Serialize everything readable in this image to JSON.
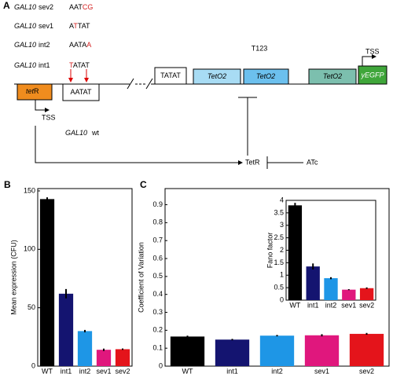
{
  "diagram": {
    "label": "A",
    "variants": [
      {
        "gene": "GAL10",
        "name": "sev2",
        "sequence": "AATCG",
        "mutated": [
          3,
          4
        ]
      },
      {
        "gene": "GAL10",
        "name": "sev1",
        "sequence": "ATTAT",
        "mutated": [
          1
        ]
      },
      {
        "gene": "GAL10",
        "name": "int2",
        "sequence": "AATAA",
        "mutated": [
          4
        ]
      },
      {
        "gene": "GAL10",
        "name": "int1",
        "sequence": "TATAT",
        "mutated": [
          0
        ]
      }
    ],
    "construct": "T123",
    "tatat_box": "TATAT",
    "teto": [
      "TetO2",
      "TetO2",
      "TetO2"
    ],
    "reporter": "yEGFP",
    "tss_reporter": "TSS",
    "repressor_gene": {
      "italic": "tet",
      "plain": "R"
    },
    "tss_repressor": "TSS",
    "aatat_box": "AATAT",
    "wt_label": {
      "gene": "GAL10",
      "name": "wt"
    },
    "protein": "TetR",
    "inducer": "ATc"
  },
  "chart_data": [
    {
      "type": "bar",
      "label": "B",
      "ylabel": "Mean expression (CFU)",
      "categories": [
        "WT",
        "int1",
        "int2",
        "sev1",
        "sev2"
      ],
      "values": [
        143,
        62,
        30,
        14,
        14.5
      ],
      "errors": [
        1.5,
        4,
        1,
        1,
        0.6
      ],
      "colors": [
        "#000000",
        "#141470",
        "#1e96e6",
        "#e0177d",
        "#e4141b"
      ],
      "ylim": [
        0,
        152
      ],
      "yticks": [
        0,
        50,
        100,
        150
      ]
    },
    {
      "type": "bar",
      "label": "C",
      "ylabel": "Coefficient of Variation",
      "categories": [
        "WT",
        "int1",
        "int2",
        "sev1",
        "sev2"
      ],
      "values": [
        0.165,
        0.148,
        0.17,
        0.172,
        0.18
      ],
      "errors": [
        0.005,
        0.004,
        0.004,
        0.006,
        0.005
      ],
      "colors": [
        "#000000",
        "#141470",
        "#1e96e6",
        "#e0177d",
        "#e4141b"
      ],
      "ylim": [
        0,
        0.99
      ],
      "yticks": [
        0,
        0.1,
        0.2,
        0.3,
        0.4,
        0.5,
        0.6,
        0.7,
        0.8,
        0.9
      ]
    },
    {
      "type": "bar",
      "ylabel": "Fano factor",
      "categories": [
        "WT",
        "int1",
        "int2",
        "sev1",
        "sev2"
      ],
      "values": [
        3.8,
        1.35,
        0.88,
        0.42,
        0.48
      ],
      "errors": [
        0.1,
        0.12,
        0.04,
        0.02,
        0.03
      ],
      "colors": [
        "#000000",
        "#141470",
        "#1e96e6",
        "#e0177d",
        "#e4141b"
      ],
      "ylim": [
        0,
        4
      ],
      "yticks": [
        0,
        0.5,
        1,
        1.5,
        2,
        2.5,
        3,
        3.5,
        4
      ]
    }
  ]
}
